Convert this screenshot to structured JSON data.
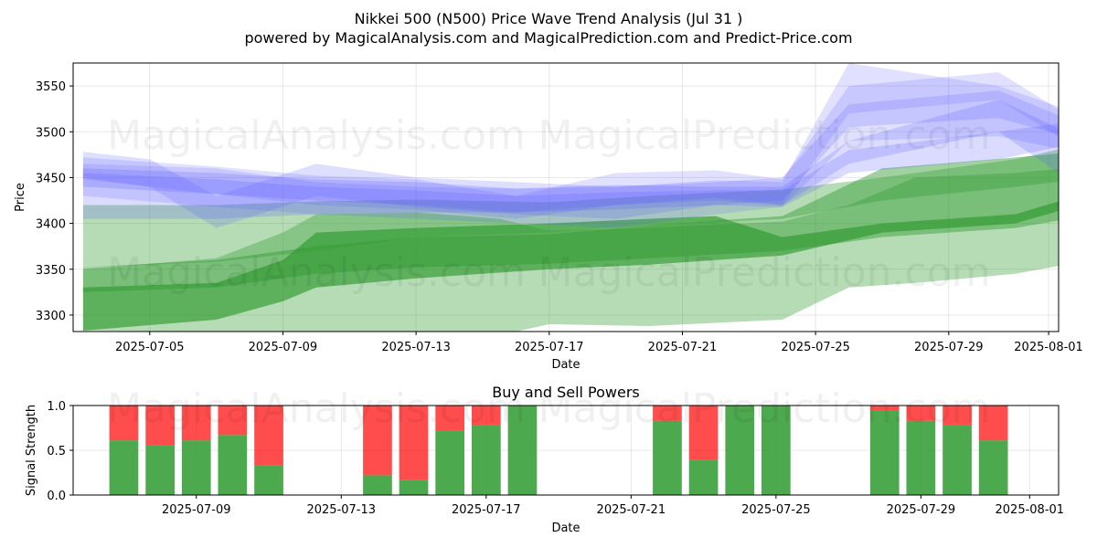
{
  "title": "Nikkei 500 (N500) Price Wave Trend Analysis (Jul 31 )",
  "subtitle": "powered by MagicalAnalysis.com and MagicalPrediction.com and Predict-Price.com",
  "watermarks": [
    "MagicalAnalysis.com",
    "MagicalPrediction.com"
  ],
  "colors": {
    "green": "#2e9a2e",
    "blue": "#5a5aff",
    "buy": "#2e9a2e",
    "sell": "#ff0000",
    "grid": "#b0b0b0"
  },
  "chart_data": [
    {
      "type": "area",
      "title": "",
      "xlabel": "Date",
      "ylabel": "Price",
      "x_ticks": [
        "2025-07-05",
        "2025-07-09",
        "2025-07-13",
        "2025-07-17",
        "2025-07-21",
        "2025-07-25",
        "2025-07-29",
        "2025-08-01"
      ],
      "y_ticks": [
        3300,
        3350,
        3400,
        3450,
        3500,
        3550
      ],
      "xlim_days": [
        -0.3,
        29.3
      ],
      "ylim": [
        3282,
        3575
      ],
      "grid": true,
      "green_bands": [
        {
          "name": "green-wave-1",
          "opacity": 0.35,
          "x": [
            0,
            4,
            7,
            10,
            14,
            17,
            21,
            24,
            28,
            30.4
          ],
          "upper": [
            3420,
            3420,
            3424,
            3426,
            3423,
            3430,
            3437,
            3450,
            3470,
            3490
          ],
          "lower": [
            3352,
            3358,
            3370,
            3385,
            3390,
            3398,
            3405,
            3425,
            3440,
            3450
          ]
        },
        {
          "name": "green-wave-2",
          "opacity": 0.35,
          "x": [
            0,
            4,
            6,
            7,
            10,
            11.5,
            12.5,
            14,
            17,
            21,
            23,
            25,
            28,
            29.5,
            30.4
          ],
          "upper": [
            3350,
            3362,
            3390,
            3410,
            3412,
            3408,
            3405,
            3392,
            3395,
            3402,
            3420,
            3450,
            3455,
            3460,
            3466
          ],
          "lower": [
            3283,
            3282,
            3275,
            3270,
            3270,
            3270,
            3278,
            3290,
            3288,
            3295,
            3330,
            3335,
            3345,
            3355,
            3367
          ]
        },
        {
          "name": "green-wave-3",
          "opacity": 0.45,
          "x": [
            0,
            4,
            7,
            10,
            14,
            17,
            21,
            24,
            28,
            30.4
          ],
          "upper": [
            3352,
            3360,
            3375,
            3385,
            3388,
            3398,
            3408,
            3460,
            3472,
            3480
          ],
          "lower": [
            3325,
            3330,
            3345,
            3352,
            3356,
            3362,
            3370,
            3385,
            3395,
            3410
          ]
        },
        {
          "name": "green-wave-4",
          "opacity": 0.65,
          "x": [
            0,
            4,
            6,
            7,
            10,
            14,
            17,
            19,
            21,
            24,
            28,
            30.4
          ],
          "upper": [
            3330,
            3335,
            3360,
            3390,
            3395,
            3400,
            3405,
            3408,
            3385,
            3400,
            3410,
            3436
          ],
          "lower": [
            3283,
            3295,
            3315,
            3330,
            3340,
            3350,
            3355,
            3360,
            3365,
            3390,
            3400,
            3425
          ]
        }
      ],
      "blue_bands": [
        {
          "name": "blue-wave-1",
          "opacity": 0.18,
          "x": [
            0,
            4,
            7,
            10,
            13,
            16,
            19,
            21,
            23,
            27.5,
            29.5
          ],
          "upper": [
            3465,
            3460,
            3445,
            3440,
            3438,
            3440,
            3447,
            3445,
            3575,
            3550,
            3525
          ],
          "lower": [
            3430,
            3418,
            3410,
            3405,
            3400,
            3395,
            3410,
            3418,
            3490,
            3495,
            3480
          ]
        },
        {
          "name": "blue-wave-2",
          "opacity": 0.18,
          "x": [
            0,
            4,
            7,
            10,
            13,
            16,
            19,
            21,
            23,
            27.5,
            29.5
          ],
          "upper": [
            3472,
            3462,
            3452,
            3448,
            3430,
            3455,
            3458,
            3448,
            3550,
            3565,
            3520
          ],
          "lower": [
            3448,
            3432,
            3420,
            3415,
            3405,
            3420,
            3428,
            3420,
            3520,
            3535,
            3490
          ]
        },
        {
          "name": "blue-wave-3",
          "opacity": 0.22,
          "x": [
            0,
            4,
            7,
            10,
            13,
            16,
            19,
            21,
            23,
            27.5,
            29.5
          ],
          "upper": [
            3460,
            3455,
            3448,
            3445,
            3438,
            3442,
            3440,
            3440,
            3490,
            3535,
            3500
          ],
          "lower": [
            3440,
            3432,
            3425,
            3420,
            3412,
            3420,
            3425,
            3420,
            3465,
            3500,
            3450
          ]
        },
        {
          "name": "blue-wave-4",
          "opacity": 0.22,
          "x": [
            0,
            4,
            7,
            10,
            13,
            16,
            19,
            21,
            23,
            27.5,
            29.5
          ],
          "upper": [
            3455,
            3448,
            3440,
            3436,
            3430,
            3434,
            3436,
            3436,
            3480,
            3500,
            3510
          ],
          "lower": [
            3405,
            3405,
            3410,
            3412,
            3412,
            3415,
            3420,
            3418,
            3455,
            3470,
            3485
          ]
        },
        {
          "name": "blue-wave-5",
          "opacity": 0.2,
          "x": [
            0,
            2,
            4,
            7,
            10,
            13,
            16,
            19,
            21,
            23,
            27.5,
            29.5
          ],
          "upper": [
            3478,
            3470,
            3430,
            3465,
            3450,
            3445,
            3440,
            3445,
            3450,
            3530,
            3545,
            3515
          ],
          "lower": [
            3450,
            3440,
            3395,
            3430,
            3418,
            3410,
            3405,
            3420,
            3425,
            3505,
            3515,
            3495
          ]
        }
      ]
    },
    {
      "type": "bar",
      "title": "Buy and Sell Powers",
      "xlabel": "Date",
      "ylabel": "Signal Strength",
      "x_ticks": [
        "2025-07-09",
        "2025-07-13",
        "2025-07-17",
        "2025-07-21",
        "2025-07-25",
        "2025-07-29",
        "2025-08-01"
      ],
      "y_ticks": [
        "0.0",
        "0.5",
        "1.0"
      ],
      "ylim": [
        0,
        1
      ],
      "series": [
        {
          "name": "Buy",
          "values": [
            0.61,
            0.56,
            0.61,
            0.67,
            0.33,
            0.22,
            0.17,
            0.72,
            0.78,
            1.0,
            0.83,
            0.39,
            1.0,
            1.0,
            0.94,
            0.83,
            0.78,
            0.61
          ]
        },
        {
          "name": "Sell",
          "values": [
            0.39,
            0.44,
            0.39,
            0.33,
            0.67,
            0.78,
            0.83,
            0.28,
            0.22,
            0.0,
            0.17,
            0.61,
            0.0,
            0.0,
            0.06,
            0.17,
            0.22,
            0.39
          ]
        }
      ],
      "dates": [
        "2025-07-07",
        "2025-07-08",
        "2025-07-09",
        "2025-07-10",
        "2025-07-11",
        "2025-07-14",
        "2025-07-15",
        "2025-07-16",
        "2025-07-17",
        "2025-07-18",
        "2025-07-22",
        "2025-07-23",
        "2025-07-24",
        "2025-07-25",
        "2025-07-28",
        "2025-07-29",
        "2025-07-30",
        "2025-07-31"
      ]
    }
  ]
}
